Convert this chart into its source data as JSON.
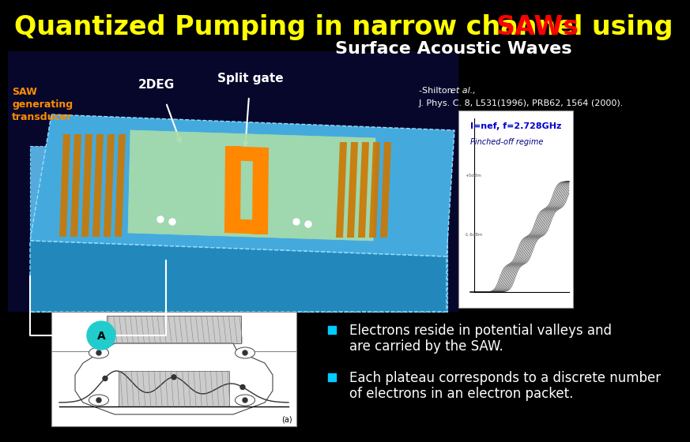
{
  "bg_color": "#000000",
  "title_text": "Quantized Pumping in narrow channel using ",
  "title_saw": "SAWs",
  "title_color": "#ffff00",
  "title_saw_color": "#ff0000",
  "subtitle": "Surface Acoustic Waves",
  "subtitle_color": "#ffffff",
  "saw_label": "SAW\ngenerating\ntransducer",
  "saw_label_color": "#ff8c00",
  "deg_label": "2DEG",
  "deg_label_color": "#ffffff",
  "split_label": "Split gate",
  "split_label_color": "#ffffff",
  "ref_shilton": "-Shilton ",
  "ref_italic": "et al.,",
  "ref_line2": "J. Phys. C. 8, L531(1996), PRB62, 1564 (2000).",
  "ref_color": "#ffffff",
  "graph_text1": "I=nef, f=2.728GHz",
  "graph_text1_color": "#0000cc",
  "graph_text2": "Pinched-off regime",
  "graph_text2_color": "#000080",
  "bullet_color": "#00ccff",
  "bullet1_line1": "Electrons reside in potential valleys and",
  "bullet1_line2": "are carried by the SAW.",
  "bullet2_line1": "Each plateau corresponds to a discrete number",
  "bullet2_line2": "of electrons in an electron packet.",
  "bullet_text_color": "#ffffff",
  "title_fontsize": 24,
  "subtitle_fontsize": 16,
  "label_fontsize": 9,
  "ref_fontsize": 8,
  "bullet_fontsize": 12
}
